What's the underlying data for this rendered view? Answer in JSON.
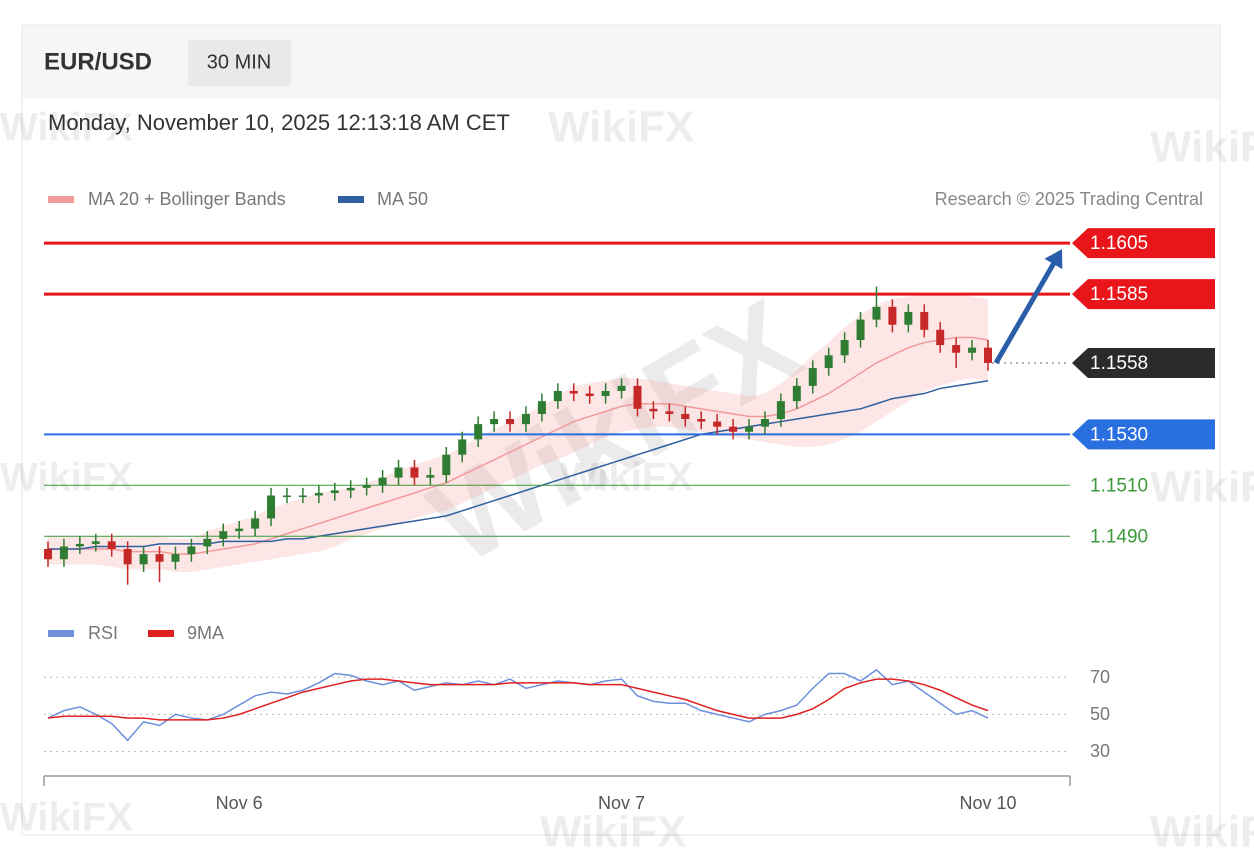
{
  "header": {
    "symbol": "EUR/USD",
    "timeframe": "30 MIN",
    "timestamp": "Monday, November 10, 2025 12:13:18 AM CET",
    "credit": "Research © 2025 Trading Central",
    "watermark": "WikiFX"
  },
  "chart_data": [
    {
      "type": "candlestick",
      "categories": [
        null,
        null,
        null,
        null,
        null,
        null,
        null,
        null,
        null,
        null,
        null,
        null,
        "Nov 6",
        null,
        null,
        null,
        null,
        null,
        null,
        null,
        null,
        null,
        null,
        null,
        null,
        null,
        null,
        null,
        null,
        null,
        null,
        null,
        null,
        null,
        null,
        null,
        "Nov 7",
        null,
        null,
        null,
        null,
        null,
        null,
        null,
        null,
        null,
        null,
        null,
        null,
        null,
        null,
        null,
        null,
        null,
        null,
        null,
        null,
        null,
        null,
        "Nov 10"
      ],
      "open": [
        1.1485,
        1.1481,
        1.1486,
        1.1487,
        1.1488,
        1.1485,
        1.1479,
        1.1483,
        1.148,
        1.1483,
        1.1486,
        1.1489,
        1.1492,
        1.1493,
        1.1497,
        1.1506,
        1.1506,
        1.1506,
        1.1507,
        1.1508,
        1.1509,
        1.151,
        1.1513,
        1.1517,
        1.1513,
        1.1514,
        1.1522,
        1.1528,
        1.1534,
        1.1536,
        1.1534,
        1.1538,
        1.1543,
        1.1547,
        1.1546,
        1.1545,
        1.1547,
        1.1549,
        1.154,
        1.1539,
        1.1538,
        1.1536,
        1.1535,
        1.1533,
        1.1531,
        1.1533,
        1.1536,
        1.1543,
        1.1549,
        1.1556,
        1.1561,
        1.1567,
        1.1575,
        1.158,
        1.1573,
        1.1578,
        1.1571,
        1.1565,
        1.1562,
        1.1564
      ],
      "high": [
        1.1488,
        1.1489,
        1.149,
        1.1491,
        1.1491,
        1.1488,
        1.1486,
        1.1486,
        1.1486,
        1.1489,
        1.1492,
        1.1495,
        1.1496,
        1.15,
        1.1509,
        1.1509,
        1.1509,
        1.151,
        1.1511,
        1.1512,
        1.1513,
        1.1516,
        1.152,
        1.152,
        1.1517,
        1.1525,
        1.1531,
        1.1537,
        1.1539,
        1.1539,
        1.1541,
        1.1546,
        1.155,
        1.155,
        1.1549,
        1.155,
        1.1552,
        1.1552,
        1.1543,
        1.1542,
        1.1541,
        1.1539,
        1.1538,
        1.1536,
        1.1536,
        1.1539,
        1.1546,
        1.1552,
        1.1559,
        1.1564,
        1.157,
        1.1578,
        1.1588,
        1.1583,
        1.1581,
        1.1581,
        1.1574,
        1.1568,
        1.1567,
        1.1567
      ],
      "low": [
        1.1478,
        1.1478,
        1.1483,
        1.1484,
        1.1482,
        1.1471,
        1.1476,
        1.1472,
        1.1477,
        1.148,
        1.1483,
        1.1486,
        1.1489,
        1.149,
        1.1494,
        1.1503,
        1.1503,
        1.1503,
        1.1504,
        1.1505,
        1.1506,
        1.1507,
        1.151,
        1.151,
        1.151,
        1.1511,
        1.1519,
        1.1525,
        1.1531,
        1.1531,
        1.1531,
        1.1535,
        1.154,
        1.1543,
        1.1542,
        1.1542,
        1.1544,
        1.1537,
        1.1536,
        1.1535,
        1.1533,
        1.1532,
        1.153,
        1.1528,
        1.1528,
        1.153,
        1.1533,
        1.154,
        1.1546,
        1.1553,
        1.1558,
        1.1564,
        1.1572,
        1.157,
        1.157,
        1.1568,
        1.1562,
        1.1556,
        1.1559,
        1.1555
      ],
      "close": [
        1.1481,
        1.1486,
        1.1487,
        1.1488,
        1.1485,
        1.1479,
        1.1483,
        1.148,
        1.1483,
        1.1486,
        1.1489,
        1.1492,
        1.1493,
        1.1497,
        1.1506,
        1.1506,
        1.1506,
        1.1507,
        1.1508,
        1.1509,
        1.151,
        1.1513,
        1.1517,
        1.1513,
        1.1514,
        1.1522,
        1.1528,
        1.1534,
        1.1536,
        1.1534,
        1.1538,
        1.1543,
        1.1547,
        1.1546,
        1.1545,
        1.1547,
        1.1549,
        1.154,
        1.1539,
        1.1538,
        1.1536,
        1.1535,
        1.1533,
        1.1531,
        1.1533,
        1.1536,
        1.1543,
        1.1549,
        1.1556,
        1.1561,
        1.1567,
        1.1575,
        1.158,
        1.1573,
        1.1578,
        1.1571,
        1.1565,
        1.1562,
        1.1564,
        1.1558
      ],
      "up_color": "#2e7d32",
      "down_color": "#c62828",
      "series": [
        {
          "name": "MA 20 + Bollinger Bands",
          "color": "#f29a9a",
          "values": [
            1.1485,
            1.1485,
            1.1485,
            1.1485,
            1.1485,
            1.1484,
            1.1484,
            1.1484,
            1.1483,
            1.1483,
            1.1484,
            1.1485,
            1.1486,
            1.1487,
            1.1489,
            1.1491,
            1.1493,
            1.1495,
            1.1497,
            1.1499,
            1.1501,
            1.1503,
            1.1505,
            1.1507,
            1.1509,
            1.1511,
            1.1514,
            1.1517,
            1.152,
            1.1523,
            1.1526,
            1.1529,
            1.1532,
            1.1535,
            1.1537,
            1.1539,
            1.1541,
            1.1542,
            1.1542,
            1.1542,
            1.1541,
            1.154,
            1.1539,
            1.1538,
            1.1537,
            1.1537,
            1.1538,
            1.154,
            1.1543,
            1.1546,
            1.155,
            1.1554,
            1.1558,
            1.1561,
            1.1564,
            1.1566,
            1.1567,
            1.1568,
            1.1568,
            1.1567
          ],
          "upper": [
            1.149,
            1.149,
            1.149,
            1.149,
            1.149,
            1.149,
            1.149,
            1.149,
            1.1489,
            1.1489,
            1.1492,
            1.1494,
            1.1496,
            1.1498,
            1.1501,
            1.1503,
            1.1505,
            1.1507,
            1.1508,
            1.1509,
            1.1511,
            1.1513,
            1.1516,
            1.1518,
            1.152,
            1.1522,
            1.1525,
            1.1529,
            1.1532,
            1.1535,
            1.1538,
            1.1541,
            1.1545,
            1.1549,
            1.155,
            1.1551,
            1.1552,
            1.1552,
            1.1551,
            1.155,
            1.1549,
            1.1548,
            1.1547,
            1.1546,
            1.1545,
            1.1546,
            1.155,
            1.1555,
            1.1561,
            1.1566,
            1.1572,
            1.1577,
            1.1581,
            1.1583,
            1.1584,
            1.1585,
            1.1585,
            1.1585,
            1.1584,
            1.1583
          ],
          "lower": [
            1.1479,
            1.1479,
            1.1479,
            1.1479,
            1.1478,
            1.1477,
            1.1477,
            1.1477,
            1.1476,
            1.1476,
            1.1477,
            1.1478,
            1.1479,
            1.148,
            1.1481,
            1.1482,
            1.1483,
            1.1484,
            1.1486,
            1.1489,
            1.1491,
            1.1493,
            1.1495,
            1.1497,
            1.1499,
            1.15,
            1.1503,
            1.1506,
            1.1509,
            1.1512,
            1.1515,
            1.1518,
            1.152,
            1.1523,
            1.1526,
            1.1529,
            1.1531,
            1.1532,
            1.1533,
            1.1533,
            1.1532,
            1.1531,
            1.153,
            1.1529,
            1.1528,
            1.1527,
            1.1526,
            1.1525,
            1.1525,
            1.1526,
            1.1528,
            1.1531,
            1.1535,
            1.1539,
            1.1543,
            1.1547,
            1.1549,
            1.1551,
            1.1552,
            1.1551
          ]
        },
        {
          "name": "MA 50",
          "color": "#2f5f9e",
          "values": [
            1.1485,
            1.1485,
            1.1485,
            1.1486,
            1.1486,
            1.1486,
            1.1486,
            1.1487,
            1.1487,
            1.1487,
            1.1487,
            1.1488,
            1.1488,
            1.1488,
            1.1488,
            1.1489,
            1.1489,
            1.149,
            1.1491,
            1.1492,
            1.1493,
            1.1494,
            1.1495,
            1.1496,
            1.1497,
            1.1498,
            1.15,
            1.1502,
            1.1504,
            1.1506,
            1.1508,
            1.151,
            1.1512,
            1.1514,
            1.1516,
            1.1518,
            1.152,
            1.1522,
            1.1524,
            1.1526,
            1.1528,
            1.153,
            1.1531,
            1.1532,
            1.1533,
            1.1534,
            1.1535,
            1.1536,
            1.1537,
            1.1538,
            1.1539,
            1.154,
            1.1542,
            1.1544,
            1.1545,
            1.1546,
            1.1548,
            1.1549,
            1.155,
            1.1551
          ]
        }
      ],
      "levels": [
        {
          "value": 1.1605,
          "label": "1.1605",
          "color": "#e8151b",
          "width": 3,
          "boxed": true,
          "dashed": false
        },
        {
          "value": 1.1585,
          "label": "1.1585",
          "color": "#e8151b",
          "width": 3,
          "boxed": true,
          "dashed": false
        },
        {
          "value": 1.1558,
          "label": "1.1558",
          "color": "#2b2b2b",
          "width": 1,
          "boxed": true,
          "dashed": true
        },
        {
          "value": 1.153,
          "label": "1.1530",
          "color": "#2a6fe0",
          "width": 2,
          "boxed": true,
          "dashed": false
        },
        {
          "value": 1.151,
          "label": "1.1510",
          "color": "#3c9a3c",
          "width": 1,
          "boxed": false,
          "dashed": false
        },
        {
          "value": 1.149,
          "label": "1.1490",
          "color": "#3c9a3c",
          "width": 1,
          "boxed": false,
          "dashed": false
        }
      ],
      "arrow_color": "#2a5da8",
      "ylim": [
        1.1465,
        1.1618
      ]
    },
    {
      "type": "line",
      "series": [
        {
          "name": "RSI",
          "color": "#6d8fdc",
          "values": [
            48,
            52,
            54,
            50,
            45,
            36,
            46,
            44,
            50,
            48,
            47,
            50,
            55,
            60,
            62,
            61,
            63,
            67,
            72,
            71,
            68,
            66,
            68,
            63,
            65,
            67,
            66,
            68,
            66,
            69,
            64,
            66,
            68,
            67,
            66,
            68,
            69,
            60,
            57,
            56,
            56,
            52,
            50,
            48,
            46,
            50,
            52,
            55,
            64,
            72,
            72,
            68,
            74,
            66,
            68,
            62,
            56,
            50,
            52,
            48
          ]
        },
        {
          "name": "9MA",
          "color": "#e02020",
          "values": [
            48,
            49,
            49,
            49,
            49,
            48,
            48,
            47,
            47,
            47,
            47,
            48,
            50,
            53,
            56,
            59,
            62,
            64,
            66,
            68,
            69,
            69,
            68,
            67,
            66,
            66,
            66,
            66,
            66,
            67,
            67,
            67,
            67,
            67,
            66,
            66,
            66,
            64,
            62,
            60,
            58,
            55,
            52,
            50,
            48,
            48,
            48,
            50,
            53,
            58,
            64,
            67,
            69,
            69,
            68,
            66,
            63,
            59,
            55,
            52
          ]
        }
      ],
      "ylim": [
        20,
        82
      ],
      "yticks": [
        30,
        50,
        70
      ],
      "grid": true
    }
  ]
}
